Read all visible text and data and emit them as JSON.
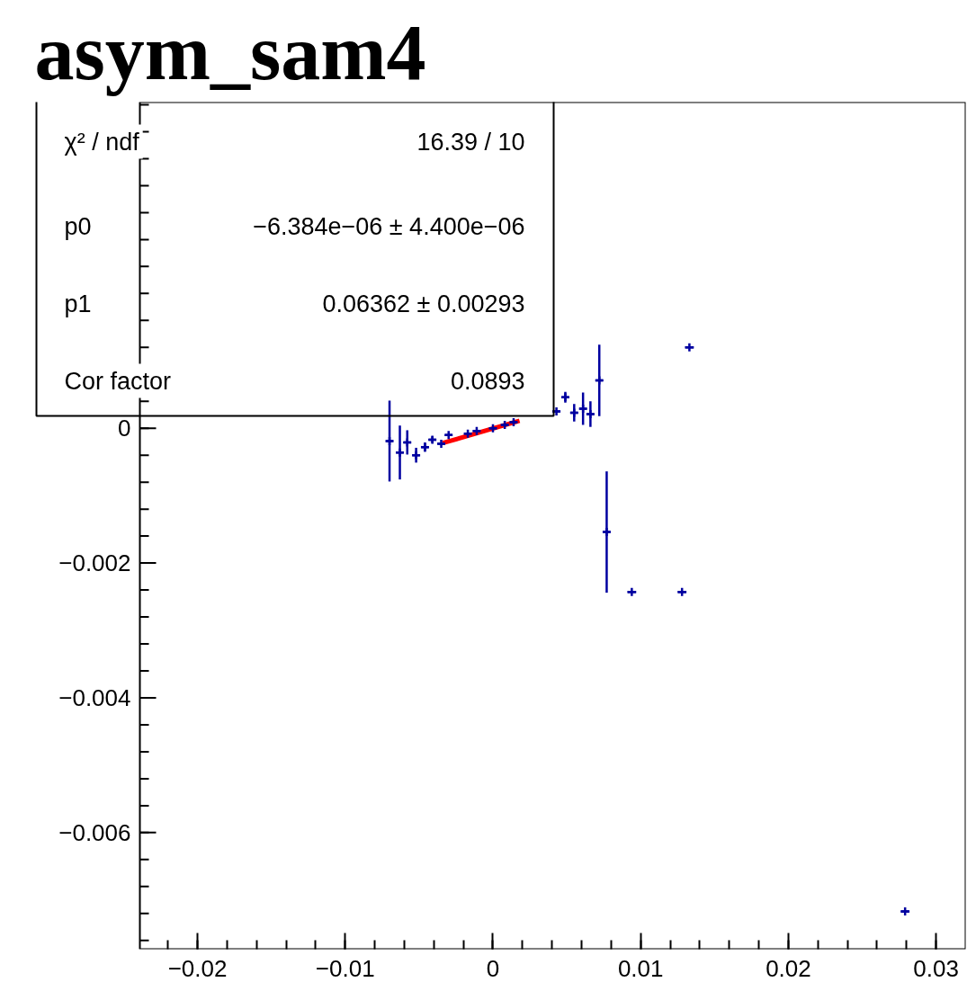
{
  "chart_data": {
    "type": "scatter",
    "title": "asym_sam4",
    "xlim": [
      -0.0239,
      0.032
    ],
    "ylim": [
      -0.00773,
      0.00484
    ],
    "xticks": [
      {
        "value": -0.02,
        "label": "−0.02"
      },
      {
        "value": -0.01,
        "label": "−0.01"
      },
      0,
      0.01,
      0.02,
      0.03
    ],
    "yticks": [
      {
        "value": -0.006,
        "label": "−0.006"
      },
      {
        "value": -0.004,
        "label": "−0.004"
      },
      {
        "value": -0.002,
        "label": "−0.002"
      },
      0
    ],
    "series": [
      {
        "color": "#0000a0",
        "marker": "cross",
        "x": [
          -0.007,
          -0.0063,
          -0.0058,
          -0.0052,
          -0.0046,
          -0.0041,
          -0.0035,
          -0.003,
          -0.0017,
          -0.0011,
          0.0,
          0.0008,
          0.0014,
          0.0043,
          0.0049,
          0.0055,
          0.0061,
          0.0066,
          0.0072,
          0.0077,
          0.0094,
          0.0128,
          0.0133,
          0.0279
        ],
        "values": [
          -0.00019,
          -0.00036,
          -0.00021,
          -0.0004,
          -0.00028,
          -0.00017,
          -0.00023,
          -0.0001,
          -8e-05,
          -4e-05,
          0.0,
          5e-05,
          9e-05,
          0.00025,
          0.00046,
          0.00023,
          0.00029,
          0.00021,
          0.00071,
          -0.00154,
          -0.00243,
          -0.00243,
          0.0012,
          -0.00717
        ],
        "errors": [
          0.0006,
          0.0004,
          0.00018,
          0.00011,
          7e-05,
          5e-05,
          null,
          null,
          null,
          null,
          null,
          null,
          null,
          null,
          8e-05,
          0.00013,
          0.00024,
          0.00019,
          0.00053,
          0.0009,
          null,
          null,
          null,
          null
        ],
        "xerrors": [
          0.00025,
          0.00025,
          0.00025,
          0.00025,
          0.00025,
          0.00025,
          0.00025,
          0.00025,
          0.00025,
          0.00025,
          0.00025,
          0.00025,
          0.00025,
          0.00025,
          0.00025,
          0.00025,
          0.00025,
          0.00025,
          0.00025,
          0.00025,
          0.0003,
          0.0003,
          0.0003,
          0.0003
        ]
      },
      {
        "type": "line",
        "color": "#ff0000",
        "x": [
          -0.0034,
          0.0018
        ],
        "values": [
          -0.00022,
          0.00011
        ]
      }
    ],
    "annotations": [
      "χ² / ndf",
      "16.39 / 10",
      "p0",
      "−6.384e−06 ± 4.400e−06",
      "p1",
      "0.06362 ± 0.00293",
      "Cor factor",
      "0.0893"
    ]
  }
}
